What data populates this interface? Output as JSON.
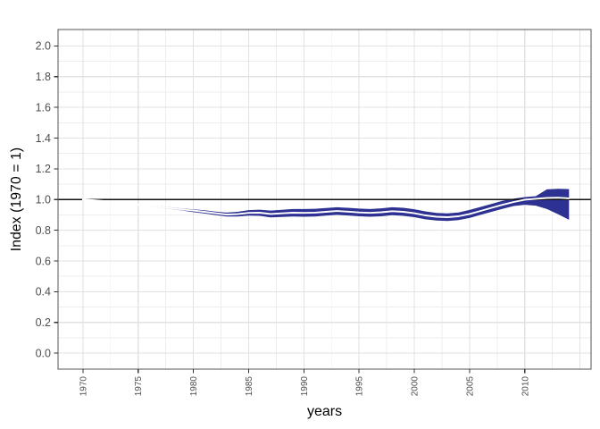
{
  "chart_data": {
    "type": "area",
    "title": "",
    "xlabel": "years",
    "ylabel": "Index (1970 = 1)",
    "legend": false,
    "grid": true,
    "reference_line_y": 1.0,
    "x": [
      1970,
      1971,
      1972,
      1973,
      1974,
      1975,
      1976,
      1977,
      1978,
      1979,
      1980,
      1981,
      1982,
      1983,
      1984,
      1985,
      1986,
      1987,
      1988,
      1989,
      1990,
      1991,
      1992,
      1993,
      1994,
      1995,
      1996,
      1997,
      1998,
      1999,
      2000,
      2001,
      2002,
      2003,
      2004,
      2005,
      2006,
      2007,
      2008,
      2009,
      2010,
      2011,
      2012,
      2013,
      2014
    ],
    "series": [
      {
        "name": "index_median",
        "values": [
          1.0,
          0.995,
          0.989,
          0.982,
          0.975,
          0.968,
          0.96,
          0.952,
          0.944,
          0.936,
          0.928,
          0.92,
          0.911,
          0.902,
          0.905,
          0.913,
          0.914,
          0.906,
          0.91,
          0.914,
          0.913,
          0.915,
          0.92,
          0.925,
          0.921,
          0.916,
          0.913,
          0.917,
          0.924,
          0.92,
          0.911,
          0.897,
          0.888,
          0.885,
          0.891,
          0.906,
          0.926,
          0.946,
          0.966,
          0.984,
          0.999,
          1.005,
          1.01,
          1.012,
          1.008
        ]
      },
      {
        "name": "ci_upper",
        "values": [
          1.0,
          0.996,
          0.991,
          0.985,
          0.978,
          0.971,
          0.964,
          0.957,
          0.949,
          0.942,
          0.936,
          0.93,
          0.922,
          0.915,
          0.92,
          0.931,
          0.934,
          0.928,
          0.933,
          0.938,
          0.938,
          0.94,
          0.945,
          0.95,
          0.946,
          0.941,
          0.938,
          0.943,
          0.95,
          0.946,
          0.937,
          0.923,
          0.913,
          0.91,
          0.916,
          0.932,
          0.952,
          0.972,
          0.992,
          1.006,
          1.016,
          1.022,
          1.066,
          1.07,
          1.068
        ]
      },
      {
        "name": "ci_lower",
        "values": [
          1.0,
          0.994,
          0.987,
          0.979,
          0.971,
          0.964,
          0.956,
          0.947,
          0.938,
          0.929,
          0.918,
          0.909,
          0.899,
          0.889,
          0.89,
          0.895,
          0.894,
          0.884,
          0.887,
          0.89,
          0.888,
          0.89,
          0.895,
          0.9,
          0.896,
          0.891,
          0.888,
          0.891,
          0.898,
          0.894,
          0.885,
          0.871,
          0.863,
          0.86,
          0.866,
          0.88,
          0.9,
          0.92,
          0.94,
          0.958,
          0.966,
          0.96,
          0.938,
          0.905,
          0.868
        ]
      }
    ],
    "axes": {
      "x": {
        "lim": [
          1967.75,
          2016.0
        ],
        "ticks": [
          1970,
          1975,
          1980,
          1985,
          1990,
          1995,
          2000,
          2005,
          2010
        ],
        "tick_labels": [
          "1970",
          "1975",
          "1980",
          "1985",
          "1990",
          "1995",
          "2000",
          "2005",
          "2010"
        ],
        "grid_major": [
          1970,
          1975,
          1980,
          1985,
          1990,
          1995,
          2000,
          2005,
          2010,
          2015
        ],
        "grid_minor": [
          1972.5,
          1977.5,
          1982.5,
          1987.5,
          1992.5,
          1997.5,
          2002.5,
          2007.5,
          2012.5
        ]
      },
      "y": {
        "lim": [
          -0.104,
          2.107
        ],
        "ticks": [
          0.0,
          0.2,
          0.4,
          0.6,
          0.8,
          1.0,
          1.2,
          1.4,
          1.6,
          1.8,
          2.0
        ],
        "tick_labels": [
          "0.0",
          "0.2",
          "0.4",
          "0.6",
          "0.8",
          "1.0",
          "1.2",
          "1.4",
          "1.6",
          "1.8",
          "2.0"
        ],
        "grid_major": [
          0.0,
          0.2,
          0.4,
          0.6,
          0.8,
          1.0,
          1.2,
          1.4,
          1.6,
          1.8,
          2.0
        ],
        "grid_minor": [
          0.1,
          0.3,
          0.5,
          0.7,
          0.9,
          1.1,
          1.3,
          1.5,
          1.7,
          1.9,
          2.1
        ]
      }
    },
    "colors": {
      "ribbon": "#2d3191",
      "center_line": "#ffffff",
      "reference_line": "#111111",
      "grid_major": "#e2e2e2",
      "grid_minor": "#ededed",
      "panel_border": "#565656",
      "tick_mark": "#333333",
      "tick_text": "#4d4d4d",
      "axis_title": "#000000",
      "background": "#ffffff"
    }
  }
}
